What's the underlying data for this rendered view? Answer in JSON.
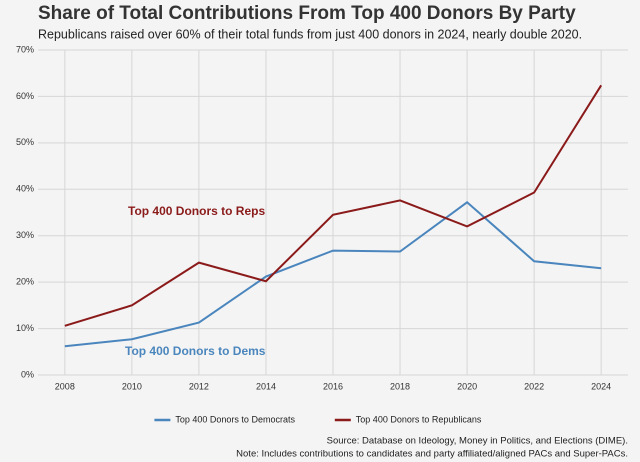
{
  "chart_data": {
    "type": "line",
    "title": "Share of Total Contributions From Top 400 Donors By Party",
    "subtitle": "Republicans raised over 60% of their total funds from just 400 donors in 2024, nearly double 2020.",
    "x": [
      2008,
      2010,
      2012,
      2014,
      2016,
      2018,
      2020,
      2022,
      2024
    ],
    "series": [
      {
        "name": "Top 400 Donors to Democrats",
        "annotation": "Top 400 Donors to Dems",
        "color": "#4a86bd",
        "values": [
          6.2,
          7.7,
          11.3,
          21.2,
          26.8,
          26.6,
          37.2,
          24.5,
          23.0
        ]
      },
      {
        "name": "Top 400 Donors to Republicans",
        "annotation": "Top 400 Donors to Reps",
        "color": "#8b1a1a",
        "values": [
          10.6,
          15.0,
          24.2,
          20.2,
          34.5,
          37.6,
          32.0,
          39.3,
          62.4
        ]
      }
    ],
    "xlim": [
      2007.2,
      2024.8
    ],
    "xticks": [
      2008,
      2010,
      2012,
      2014,
      2016,
      2018,
      2020,
      2022,
      2024
    ],
    "ylim": [
      0,
      70
    ],
    "yticks": [
      {
        "value": 0,
        "label": "0%"
      },
      {
        "value": 10,
        "label": "10%"
      },
      {
        "value": 20,
        "label": "20%"
      },
      {
        "value": 30,
        "label": "30%"
      },
      {
        "value": 40,
        "label": "40%"
      },
      {
        "value": 50,
        "label": "50%"
      },
      {
        "value": 60,
        "label": "60%"
      },
      {
        "value": 70,
        "label": "70%"
      }
    ],
    "grid": true,
    "legend": "bottom",
    "source": "Source: Database on Ideology, Money in Politics, and Elections (DIME).",
    "note": "Note: Includes contributions to candidates and party affiliated/aligned PACs and Super-PACs."
  }
}
